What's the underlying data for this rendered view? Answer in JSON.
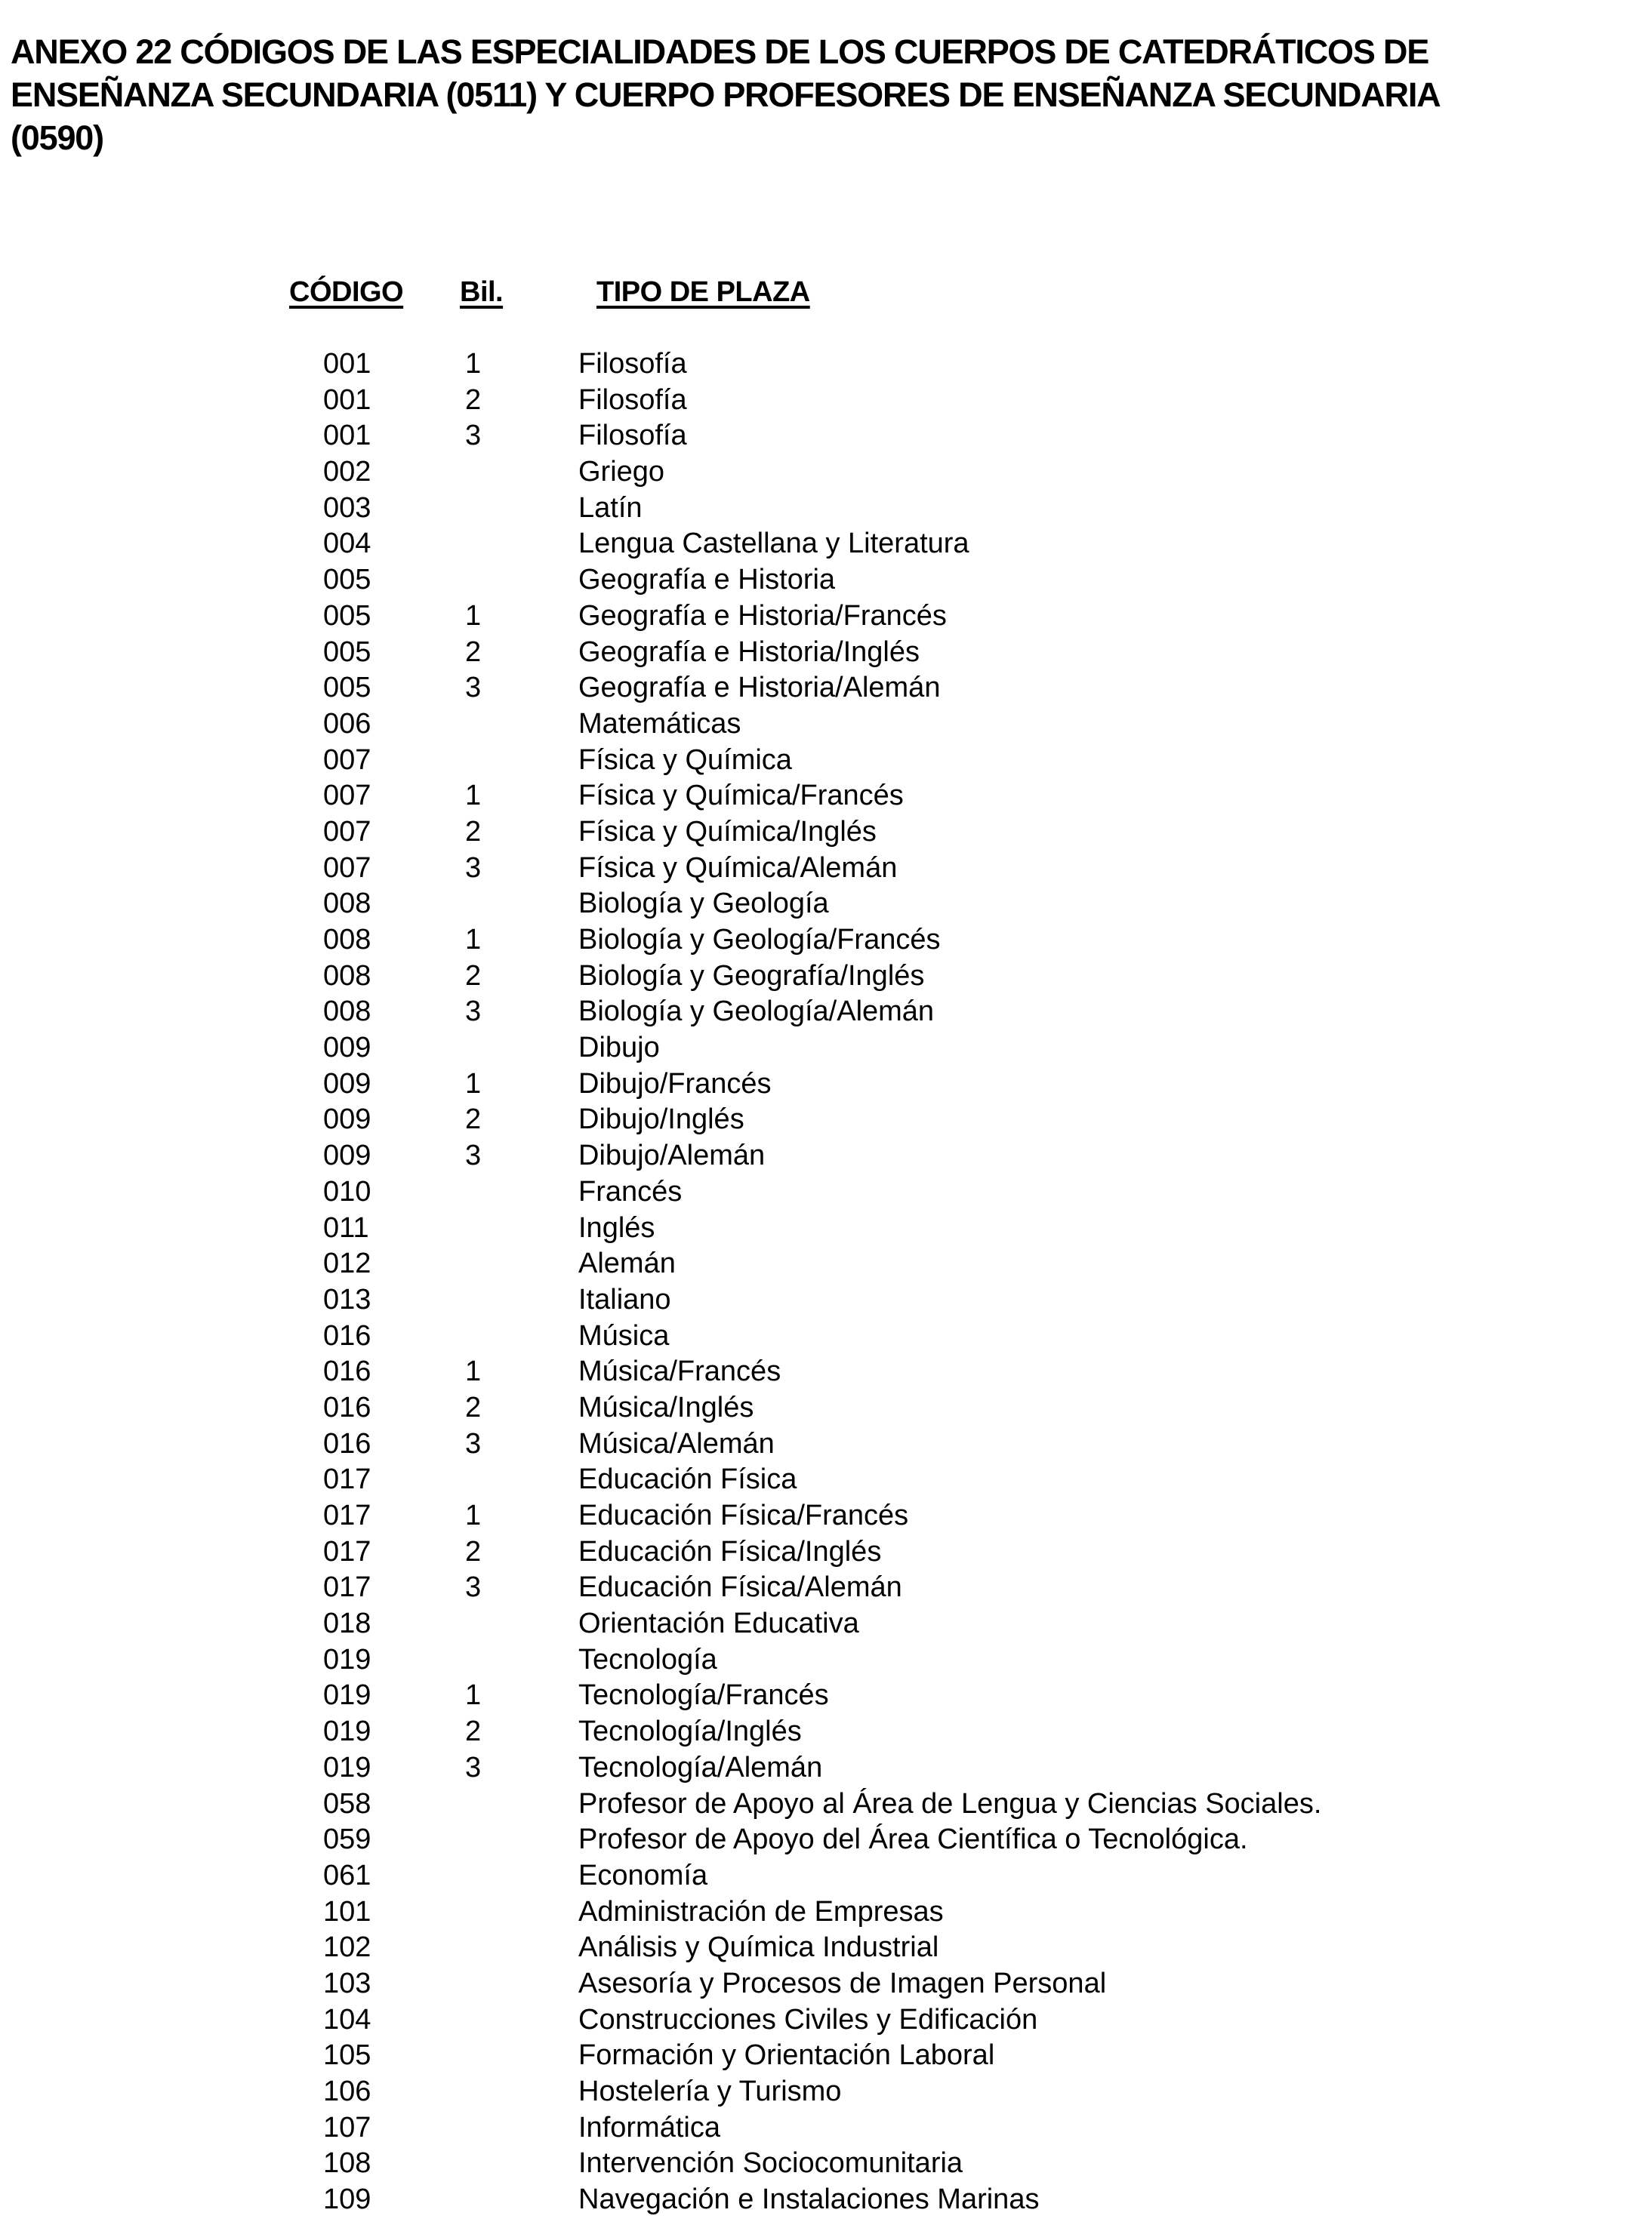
{
  "title": {
    "line1": "ANEXO 22   CÓDIGOS DE LAS ESPECIALIDADES DE LOS CUERPOS DE CATEDRÁTICOS DE",
    "line2": "ENSEÑANZA SECUNDARIA (0511) Y CUERPO PROFESORES DE ENSEÑANZA SECUNDARIA",
    "line3": "(0590)"
  },
  "table": {
    "headers": {
      "code": "CÓDIGO",
      "bil": "Bil.",
      "tipo": "TIPO DE PLAZA"
    },
    "rows": [
      [
        "001",
        "1",
        "Filosofía"
      ],
      [
        "001",
        "2",
        "Filosofía"
      ],
      [
        "001",
        "3",
        "Filosofía"
      ],
      [
        "002",
        "",
        "Griego"
      ],
      [
        "003",
        "",
        "Latín"
      ],
      [
        "004",
        "",
        "Lengua Castellana y Literatura"
      ],
      [
        "005",
        "",
        "Geografía e Historia"
      ],
      [
        "005",
        "1",
        "Geografía e Historia/Francés"
      ],
      [
        "005",
        "2",
        "Geografía e Historia/Inglés"
      ],
      [
        "005",
        "3",
        "Geografía e Historia/Alemán"
      ],
      [
        "006",
        "",
        "Matemáticas"
      ],
      [
        "007",
        "",
        "Física y Química"
      ],
      [
        "007",
        "1",
        "Física y Química/Francés"
      ],
      [
        "007",
        "2",
        "Física y Química/Inglés"
      ],
      [
        "007",
        "3",
        "Física y Química/Alemán"
      ],
      [
        "008",
        "",
        "Biología y Geología"
      ],
      [
        "008",
        "1",
        "Biología y Geología/Francés"
      ],
      [
        "008",
        "2",
        "Biología y Geografía/Inglés"
      ],
      [
        "008",
        "3",
        "Biología y Geología/Alemán"
      ],
      [
        "009",
        "",
        "Dibujo"
      ],
      [
        "009",
        "1",
        "Dibujo/Francés"
      ],
      [
        "009",
        "2",
        "Dibujo/Inglés"
      ],
      [
        "009",
        "3",
        "Dibujo/Alemán"
      ],
      [
        "010",
        "",
        "Francés"
      ],
      [
        "011",
        "",
        "Inglés"
      ],
      [
        "012",
        "",
        "Alemán"
      ],
      [
        "013",
        "",
        "Italiano"
      ],
      [
        "016",
        "",
        "Música"
      ],
      [
        "016",
        "1",
        "Música/Francés"
      ],
      [
        "016",
        "2",
        "Música/Inglés"
      ],
      [
        "016",
        "3",
        "Música/Alemán"
      ],
      [
        "017",
        "",
        "Educación Física"
      ],
      [
        "017",
        "1",
        "Educación Física/Francés"
      ],
      [
        "017",
        "2",
        "Educación Física/Inglés"
      ],
      [
        "017",
        "3",
        "Educación Física/Alemán"
      ],
      [
        "018",
        "",
        "Orientación Educativa"
      ],
      [
        "019",
        "",
        "Tecnología"
      ],
      [
        "019",
        "1",
        "Tecnología/Francés"
      ],
      [
        "019",
        "2",
        "Tecnología/Inglés"
      ],
      [
        "019",
        "3",
        "Tecnología/Alemán"
      ],
      [
        "058",
        "",
        "Profesor de Apoyo al Área de Lengua y Ciencias Sociales."
      ],
      [
        "059",
        "",
        "Profesor de Apoyo del Área Científica o Tecnológica."
      ],
      [
        "061",
        "",
        "Economía"
      ],
      [
        "101",
        "",
        "Administración de Empresas"
      ],
      [
        "102",
        "",
        "Análisis y Química Industrial"
      ],
      [
        "103",
        "",
        "Asesoría y Procesos de Imagen Personal"
      ],
      [
        "104",
        "",
        "Construcciones Civiles y Edificación"
      ],
      [
        "105",
        "",
        "Formación y Orientación Laboral"
      ],
      [
        "106",
        "",
        "Hostelería y Turismo"
      ],
      [
        "107",
        "",
        "Informática"
      ],
      [
        "108",
        "",
        "Intervención Sociocomunitaria"
      ],
      [
        "109",
        "",
        "Navegación e Instalaciones Marinas"
      ]
    ]
  }
}
